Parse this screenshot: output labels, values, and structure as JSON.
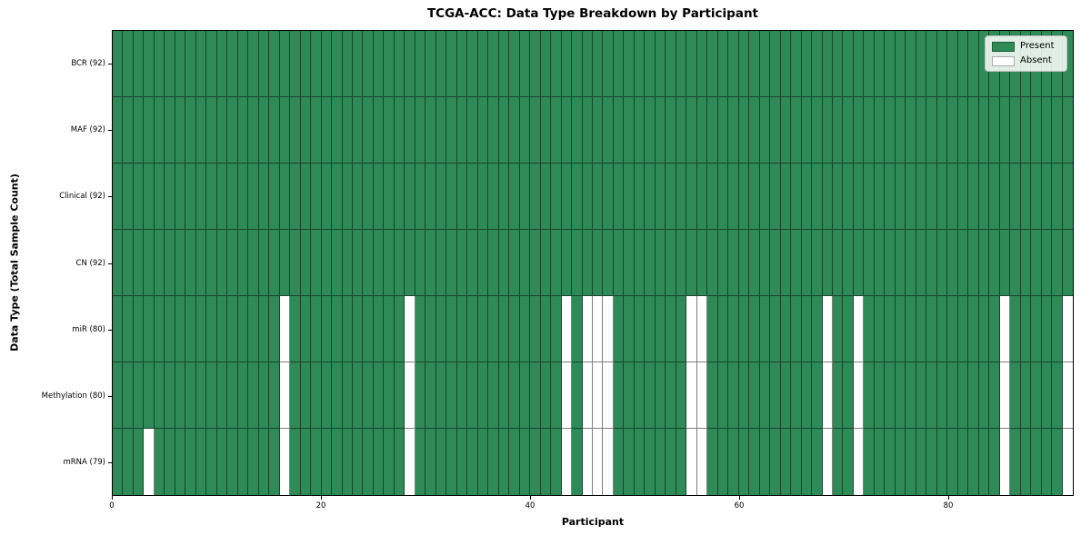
{
  "figure": {
    "background": "#ffffff"
  },
  "chart_data": {
    "type": "heatmap",
    "title": "TCGA-ACC: Data Type Breakdown by Participant",
    "xlabel": "Participant",
    "ylabel": "Data Type (Total Sample Count)",
    "x_ticks": [
      0,
      20,
      40,
      60,
      80
    ],
    "n_participants": 92,
    "value_encoding": {
      "present": 1,
      "absent": 0
    },
    "rows": [
      {
        "label": "BCR (92)",
        "present_count": 92,
        "absent_participants": []
      },
      {
        "label": "MAF (92)",
        "present_count": 92,
        "absent_participants": []
      },
      {
        "label": "Clinical (92)",
        "present_count": 92,
        "absent_participants": []
      },
      {
        "label": "CN (92)",
        "present_count": 92,
        "absent_participants": []
      },
      {
        "label": "miR (80)",
        "present_count": 80,
        "absent_participants": [
          16,
          28,
          43,
          45,
          46,
          47,
          55,
          56,
          68,
          71,
          85,
          91
        ]
      },
      {
        "label": "Methylation (80)",
        "present_count": 80,
        "absent_participants": [
          16,
          28,
          43,
          45,
          46,
          47,
          55,
          56,
          68,
          71,
          85,
          91
        ]
      },
      {
        "label": "mRNA (79)",
        "present_count": 79,
        "absent_participants": [
          3,
          16,
          28,
          43,
          45,
          46,
          47,
          55,
          56,
          68,
          71,
          85,
          91
        ]
      }
    ],
    "legend": {
      "position": "upper right",
      "items": [
        {
          "label": "Present",
          "color": "#2e8b57"
        },
        {
          "label": "Absent",
          "color": "#ffffff"
        }
      ]
    },
    "colors": {
      "present": "#2e8b57",
      "absent": "#ffffff",
      "cell_edge": "rgba(0,0,0,0.50)",
      "spine": "#000000"
    },
    "grid": "cell borders on",
    "axis_ranges": {
      "x": [
        0,
        92
      ],
      "y_rows": 7
    }
  }
}
